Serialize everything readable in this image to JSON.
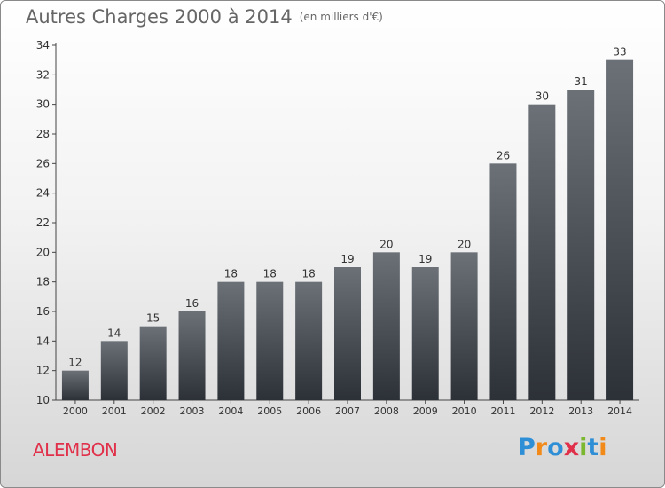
{
  "title": "Autres Charges 2000 à 2014",
  "unit": "(en milliers d'€)",
  "commune": "ALEMBON",
  "logo": {
    "text": "Proxiti",
    "letters": [
      {
        "ch": "P",
        "color": "#2f8fd6"
      },
      {
        "ch": "r",
        "color": "#f28a1a"
      },
      {
        "ch": "o",
        "color": "#2f8fd6"
      },
      {
        "ch": "x",
        "color": "#e0304a"
      },
      {
        "ch": "i",
        "color": "#7cb82f"
      },
      {
        "ch": "t",
        "color": "#2f8fd6"
      },
      {
        "ch": "i",
        "color": "#f28a1a"
      }
    ]
  },
  "chart_data": {
    "type": "bar",
    "categories": [
      "2000",
      "2001",
      "2002",
      "2003",
      "2004",
      "2005",
      "2006",
      "2007",
      "2008",
      "2009",
      "2010",
      "2011",
      "2012",
      "2013",
      "2014"
    ],
    "values": [
      12,
      14,
      15,
      16,
      18,
      18,
      18,
      19,
      20,
      19,
      20,
      26,
      30,
      31,
      33
    ],
    "title": "Autres Charges 2000 à 2014",
    "xlabel": "",
    "ylabel": "",
    "ylim": [
      10,
      34
    ],
    "yticks": [
      10,
      12,
      14,
      16,
      18,
      20,
      22,
      24,
      26,
      28,
      30,
      32,
      34
    ],
    "grid": false,
    "bar_color": "#3a4047"
  }
}
